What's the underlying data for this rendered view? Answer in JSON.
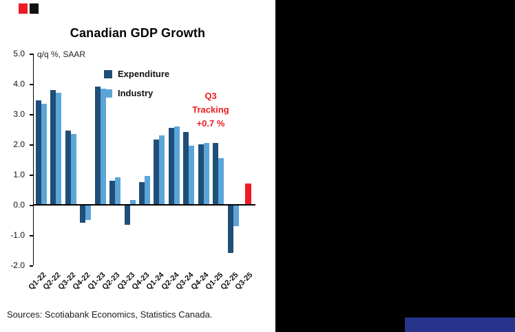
{
  "chart": {
    "title": "Canadian GDP Growth",
    "source": "Sources: Scotiabank Economics, Statistics Canada.",
    "annotation_lines": [
      "Q3",
      "Tracking",
      "+0.7 %"
    ],
    "annotation_color": "#ed1c24"
  },
  "chart_data": {
    "type": "bar",
    "title": "Canadian GDP Growth",
    "ylabel": "q/q %, SAAR",
    "ylim": [
      -2.0,
      5.0
    ],
    "ytick_step": 1.0,
    "yticks": [
      "5.0",
      "4.0",
      "3.0",
      "2.0",
      "1.0",
      "0.0",
      "-1.0",
      "-2.0"
    ],
    "grid": false,
    "legend_position": "upper-left-inside",
    "categories": [
      "Q1-22",
      "Q2-22",
      "Q3-22",
      "Q4-22",
      "Q1-23",
      "Q2-23",
      "Q3-23",
      "Q4-23",
      "Q1-24",
      "Q2-24",
      "Q3-24",
      "Q4-24",
      "Q1-25",
      "Q2-25",
      "Q3-25"
    ],
    "series": [
      {
        "name": "Expenditure",
        "color": "#1f4e79",
        "show_in_legend": true,
        "values": [
          3.45,
          3.8,
          2.45,
          -0.6,
          3.9,
          0.8,
          -0.65,
          0.75,
          2.15,
          2.55,
          2.4,
          2.0,
          2.05,
          -1.6,
          null
        ]
      },
      {
        "name": "Industry",
        "color": "#5ba5d9",
        "show_in_legend": true,
        "values": [
          3.35,
          3.7,
          2.35,
          -0.5,
          3.85,
          0.9,
          0.15,
          0.95,
          2.3,
          2.6,
          1.95,
          2.05,
          1.55,
          -0.7,
          null
        ]
      },
      {
        "name": "Q3 Tracking",
        "color": "#ed1c24",
        "show_in_legend": false,
        "values": [
          null,
          null,
          null,
          null,
          null,
          null,
          null,
          null,
          null,
          null,
          null,
          null,
          null,
          null,
          0.7
        ]
      }
    ],
    "annotation": "Q3 Tracking +0.7 %"
  }
}
